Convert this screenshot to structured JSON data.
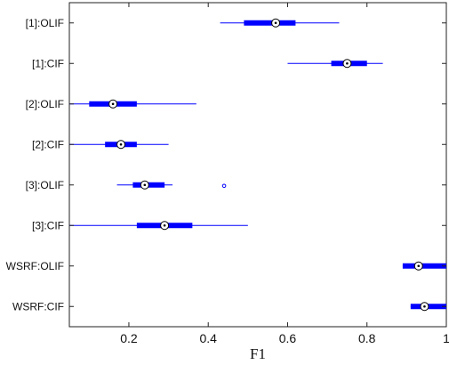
{
  "chart_data": {
    "type": "boxplot",
    "orientation": "horizontal",
    "xlabel": "F1",
    "ylabel": "",
    "title": "",
    "xlim": [
      0.05,
      1.0
    ],
    "xticks": [
      0.2,
      0.4,
      0.6,
      0.8,
      1.0
    ],
    "xtick_labels": [
      "0.2",
      "0.4",
      "0.6",
      "0.8",
      "1"
    ],
    "grid": false,
    "colors": {
      "box": "#0000ff",
      "median_fill": "#ffffff",
      "median_dot": "#000000"
    },
    "categories": [
      "[1]:OLIF",
      "[1]:CIF",
      "[2]:OLIF",
      "[2]:CIF",
      "[3]:OLIF",
      "[3]:CIF",
      "WSRF:OLIF",
      "WSRF:CIF"
    ],
    "boxes": [
      {
        "whisker_low": 0.43,
        "q1": 0.49,
        "median": 0.57,
        "q3": 0.62,
        "whisker_high": 0.73,
        "outliers": []
      },
      {
        "whisker_low": 0.6,
        "q1": 0.71,
        "median": 0.75,
        "q3": 0.8,
        "whisker_high": 0.84,
        "outliers": []
      },
      {
        "whisker_low": 0.05,
        "q1": 0.1,
        "median": 0.16,
        "q3": 0.22,
        "whisker_high": 0.37,
        "outliers": []
      },
      {
        "whisker_low": 0.05,
        "q1": 0.14,
        "median": 0.18,
        "q3": 0.22,
        "whisker_high": 0.3,
        "outliers": []
      },
      {
        "whisker_low": 0.17,
        "q1": 0.21,
        "median": 0.24,
        "q3": 0.29,
        "whisker_high": 0.31,
        "outliers": [
          0.44
        ]
      },
      {
        "whisker_low": 0.05,
        "q1": 0.22,
        "median": 0.29,
        "q3": 0.36,
        "whisker_high": 0.5,
        "outliers": []
      },
      {
        "whisker_low": 0.89,
        "q1": 0.89,
        "median": 0.93,
        "q3": 1.0,
        "whisker_high": 1.0,
        "outliers": []
      },
      {
        "whisker_low": 0.91,
        "q1": 0.91,
        "median": 0.945,
        "q3": 1.0,
        "whisker_high": 1.0,
        "outliers": []
      }
    ]
  }
}
